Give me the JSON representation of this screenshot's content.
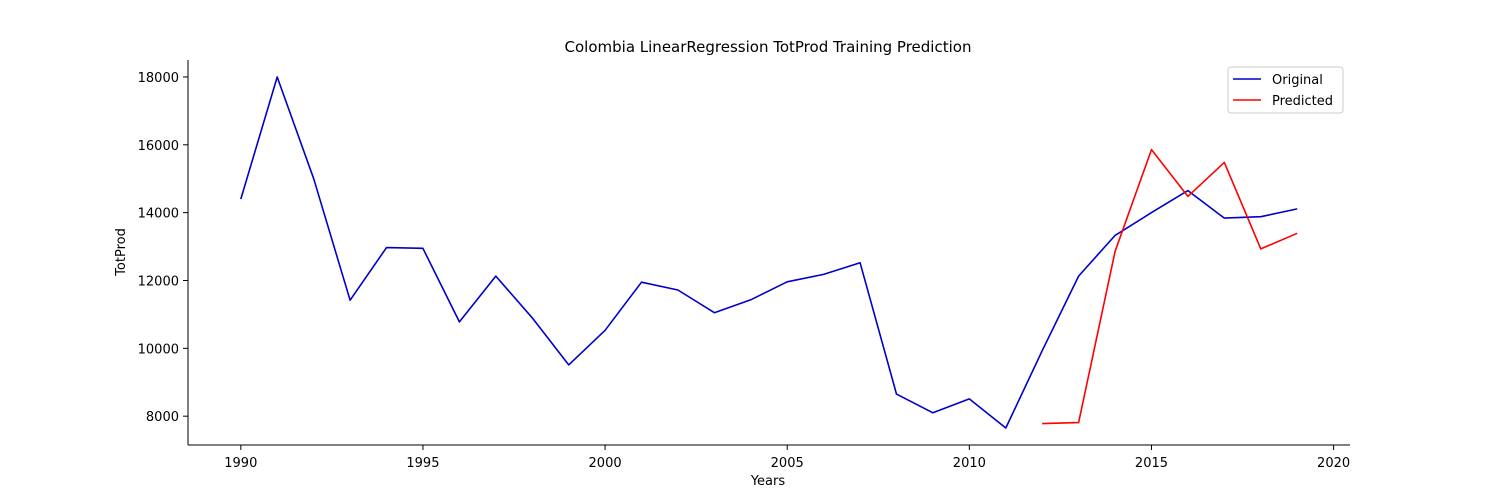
{
  "chart_data": {
    "type": "line",
    "title": "Colombia LinearRegression TotProd Training Prediction",
    "xlabel": "Years",
    "ylabel": "TotProd",
    "xlim": [
      1988.55,
      2020.45
    ],
    "ylim": [
      7150,
      18500
    ],
    "xticks": [
      1990,
      1995,
      2000,
      2005,
      2010,
      2015,
      2020
    ],
    "yticks": [
      8000,
      10000,
      12000,
      14000,
      16000,
      18000
    ],
    "grid": false,
    "legend_position": "top-right",
    "series": [
      {
        "name": "Original",
        "color": "#0000cc",
        "x": [
          1990,
          1991,
          1992,
          1993,
          1994,
          1995,
          1996,
          1997,
          1998,
          1999,
          2000,
          2001,
          2002,
          2003,
          2004,
          2005,
          2006,
          2007,
          2008,
          2009,
          2010,
          2011,
          2012,
          2013,
          2014,
          2015,
          2016,
          2017,
          2018,
          2019
        ],
        "y": [
          14400,
          18000,
          15000,
          11420,
          12970,
          12950,
          10780,
          12130,
          10900,
          9510,
          10530,
          11950,
          11720,
          11050,
          11430,
          11960,
          12180,
          12520,
          8650,
          8100,
          8510,
          7650,
          9930,
          12130,
          13330,
          14000,
          14650,
          13840,
          13880,
          14110
        ]
      },
      {
        "name": "Predicted",
        "color": "#ff0000",
        "x": [
          2012,
          2013,
          2014,
          2015,
          2016,
          2017,
          2018,
          2019
        ],
        "y": [
          7780,
          7810,
          12860,
          15860,
          14480,
          15480,
          12930,
          13390
        ]
      }
    ]
  }
}
